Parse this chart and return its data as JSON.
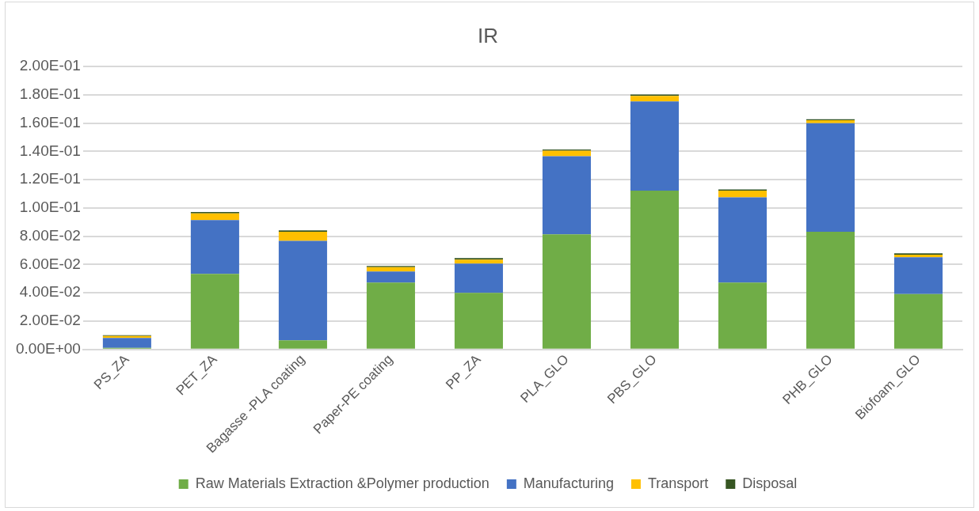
{
  "chart_data": {
    "type": "bar",
    "title": "IR",
    "stacked": true,
    "legend": "bottom",
    "grid": "y",
    "categories": [
      "PS_ZA",
      "PET_ZA",
      "Bagasse -PLA coating",
      "Paper-PE coating",
      "PP_ZA",
      "PLA_GLO",
      "PBS_GLO",
      null,
      "PHB_GLO",
      "Biofoam_GLO"
    ],
    "series": [
      {
        "name": "Raw Materials Extraction &Polymer production",
        "color": "#70ad47",
        "values": [
          0.001,
          0.0534,
          0.0064,
          0.0472,
          0.04,
          0.0813,
          0.1123,
          0.0472,
          0.0832,
          0.0391
        ]
      },
      {
        "name": "Manufacturing",
        "color": "#4472c4",
        "values": [
          0.007,
          0.038,
          0.0704,
          0.0078,
          0.0206,
          0.0553,
          0.0631,
          0.0603,
          0.0768,
          0.026
        ]
      },
      {
        "name": "Transport",
        "color": "#ffc000",
        "values": [
          0.0015,
          0.0048,
          0.0064,
          0.0031,
          0.0028,
          0.0039,
          0.0039,
          0.0048,
          0.002,
          0.0019
        ]
      },
      {
        "name": "Disposal",
        "color": "#375623",
        "values": [
          0.0005,
          0.0009,
          0.0009,
          0.0008,
          0.0011,
          0.0008,
          0.0009,
          0.0008,
          0.0008,
          0.0009
        ]
      }
    ],
    "ylim": [
      0,
      0.2
    ],
    "yticks": [
      {
        "value": 0,
        "label": "0.00E+00"
      },
      {
        "value": 0.02,
        "label": "2.00E-02"
      },
      {
        "value": 0.04,
        "label": "4.00E-02"
      },
      {
        "value": 0.06,
        "label": "6.00E-02"
      },
      {
        "value": 0.08,
        "label": "8.00E-02"
      },
      {
        "value": 0.1,
        "label": "1.00E-01"
      },
      {
        "value": 0.12,
        "label": "1.20E-01"
      },
      {
        "value": 0.14,
        "label": "1.40E-01"
      },
      {
        "value": 0.16,
        "label": "1.60E-01"
      },
      {
        "value": 0.18,
        "label": "1.80E-01"
      },
      {
        "value": 0.2,
        "label": "2.00E-01"
      }
    ]
  }
}
